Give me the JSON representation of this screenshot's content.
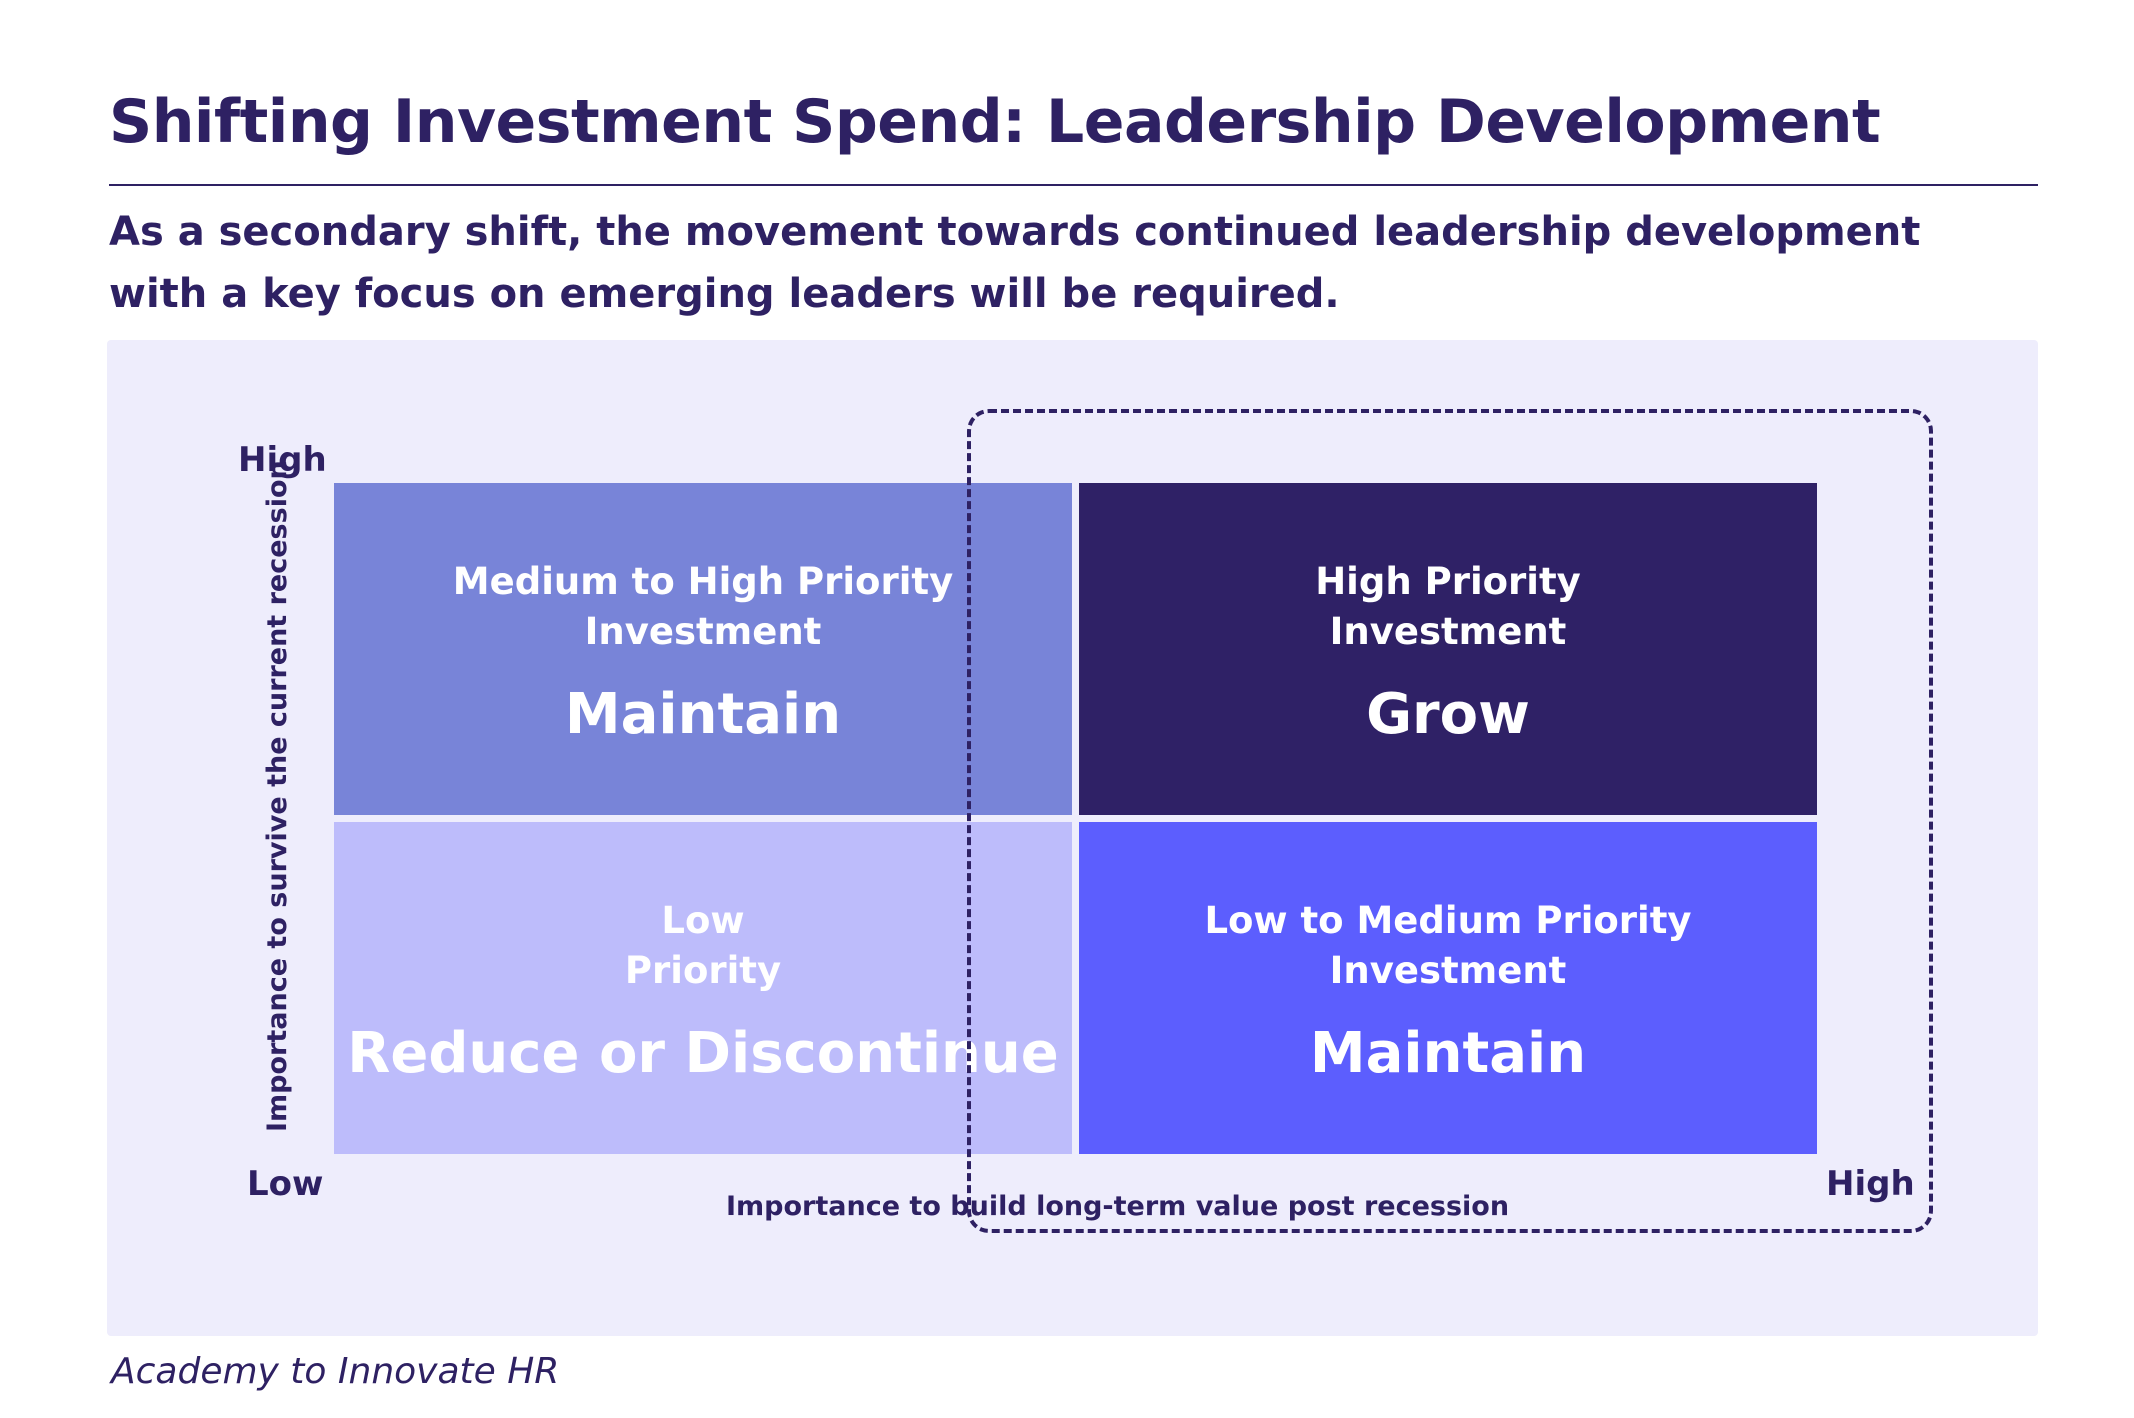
{
  "title": "Shifting Investment Spend: Leadership Development",
  "subtitle": "As a secondary shift, the movement towards continued leadership development with a key focus on emerging leaders will be required.",
  "matrix": {
    "y_axis": {
      "title": "Importance to survive the current recession",
      "high": "High",
      "low": "Low"
    },
    "x_axis": {
      "title": "Importance to build long-term value post recession",
      "high": "High"
    },
    "quadrants": {
      "top_left": {
        "priority_line1": "Medium to High Priority",
        "priority_line2": "Investment",
        "action": "Maintain",
        "color": "#7884d8"
      },
      "top_right": {
        "priority_line1": "High Priority",
        "priority_line2": "Investment",
        "action": "Grow",
        "color": "#2f2166"
      },
      "bottom_left": {
        "priority_line1": "Low",
        "priority_line2": "Priority",
        "action": "Reduce or Discontinue",
        "color": "#bdbcfb"
      },
      "bottom_right": {
        "priority_line1": "Low to Medium Priority",
        "priority_line2": "Investment",
        "action": "Maintain",
        "color": "#5c5efe"
      }
    }
  },
  "source": "Academy to Innovate HR",
  "colors": {
    "text": "#2e2163",
    "panel_background": "#eeedfc"
  }
}
